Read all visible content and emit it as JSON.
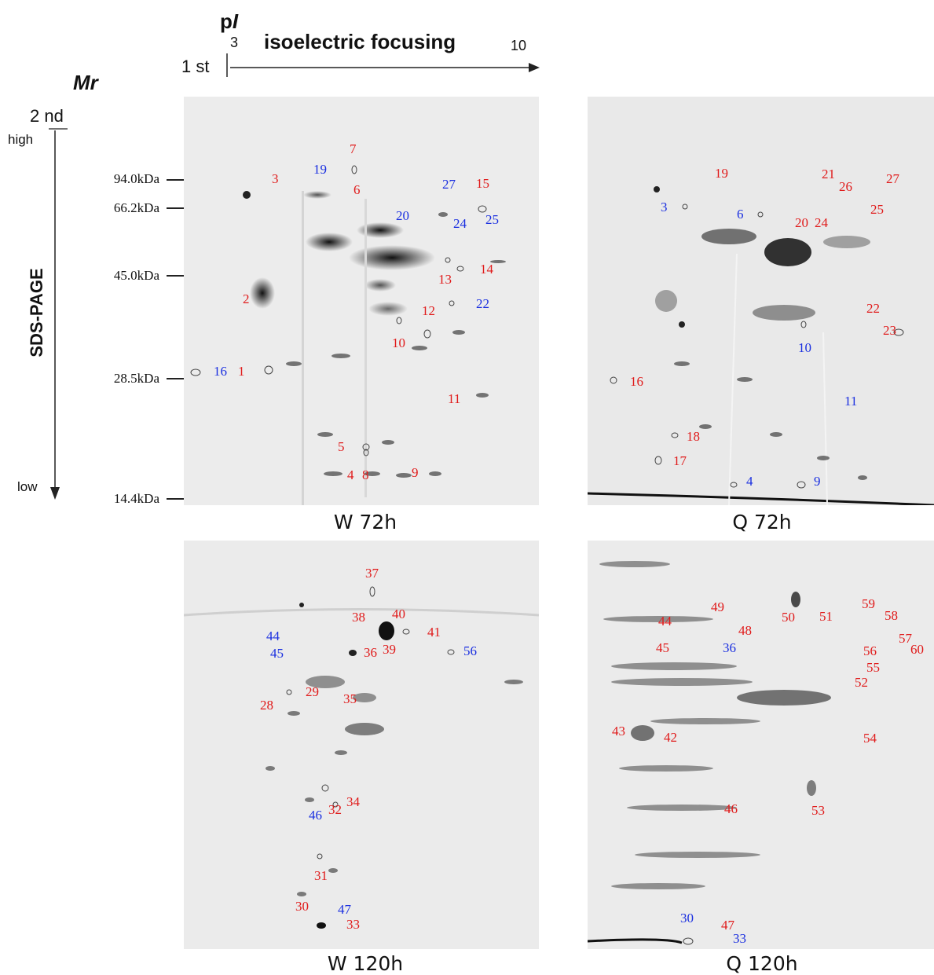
{
  "header": {
    "pi_label": "p",
    "pi_italic": "I",
    "first_dim": "1 st",
    "ph_low": "3",
    "ph_high": "10",
    "focusing_label": "isoelectric focusing",
    "mr_label": "Mr",
    "second_dim": "2 nd",
    "high_label": "high",
    "low_label": "low",
    "sds_label": "SDS-PAGE"
  },
  "markers": [
    "94.0kDa",
    "66.2kDa",
    "45.0kDa",
    "28.5kDa",
    "14.4kDa"
  ],
  "gels": [
    {
      "caption": "W 72h",
      "spots": [
        {
          "n": "1",
          "c": "red"
        },
        {
          "n": "2",
          "c": "red"
        },
        {
          "n": "3",
          "c": "red"
        },
        {
          "n": "4",
          "c": "red"
        },
        {
          "n": "5",
          "c": "red"
        },
        {
          "n": "6",
          "c": "red"
        },
        {
          "n": "7",
          "c": "red"
        },
        {
          "n": "8",
          "c": "red"
        },
        {
          "n": "9",
          "c": "red"
        },
        {
          "n": "10",
          "c": "red"
        },
        {
          "n": "11",
          "c": "red"
        },
        {
          "n": "12",
          "c": "red"
        },
        {
          "n": "13",
          "c": "red"
        },
        {
          "n": "14",
          "c": "red"
        },
        {
          "n": "15",
          "c": "red"
        },
        {
          "n": "16",
          "c": "blue"
        },
        {
          "n": "19",
          "c": "blue"
        },
        {
          "n": "20",
          "c": "blue"
        },
        {
          "n": "22",
          "c": "blue"
        },
        {
          "n": "24",
          "c": "blue"
        },
        {
          "n": "25",
          "c": "blue"
        },
        {
          "n": "27",
          "c": "blue"
        }
      ]
    },
    {
      "caption": "Q 72h",
      "spots": [
        {
          "n": "19",
          "c": "red"
        },
        {
          "n": "3",
          "c": "blue"
        },
        {
          "n": "6",
          "c": "blue"
        },
        {
          "n": "21",
          "c": "red"
        },
        {
          "n": "26",
          "c": "red"
        },
        {
          "n": "27",
          "c": "red"
        },
        {
          "n": "20",
          "c": "red"
        },
        {
          "n": "24",
          "c": "red"
        },
        {
          "n": "25",
          "c": "red"
        },
        {
          "n": "22",
          "c": "red"
        },
        {
          "n": "23",
          "c": "red"
        },
        {
          "n": "10",
          "c": "blue"
        },
        {
          "n": "16",
          "c": "red"
        },
        {
          "n": "11",
          "c": "blue"
        },
        {
          "n": "18",
          "c": "red"
        },
        {
          "n": "17",
          "c": "red"
        },
        {
          "n": "4",
          "c": "blue"
        },
        {
          "n": "9",
          "c": "blue"
        }
      ]
    },
    {
      "caption": "W 120h",
      "spots": [
        {
          "n": "37",
          "c": "red"
        },
        {
          "n": "38",
          "c": "red"
        },
        {
          "n": "40",
          "c": "red"
        },
        {
          "n": "41",
          "c": "red"
        },
        {
          "n": "39",
          "c": "red"
        },
        {
          "n": "44",
          "c": "blue"
        },
        {
          "n": "45",
          "c": "blue"
        },
        {
          "n": "36",
          "c": "red"
        },
        {
          "n": "56",
          "c": "blue"
        },
        {
          "n": "29",
          "c": "red"
        },
        {
          "n": "35",
          "c": "red"
        },
        {
          "n": "28",
          "c": "red"
        },
        {
          "n": "46",
          "c": "blue"
        },
        {
          "n": "32",
          "c": "red"
        },
        {
          "n": "34",
          "c": "red"
        },
        {
          "n": "31",
          "c": "red"
        },
        {
          "n": "30",
          "c": "red"
        },
        {
          "n": "47",
          "c": "blue"
        },
        {
          "n": "33",
          "c": "red"
        }
      ]
    },
    {
      "caption": "Q 120h",
      "spots": [
        {
          "n": "49",
          "c": "red"
        },
        {
          "n": "50",
          "c": "red"
        },
        {
          "n": "51",
          "c": "red"
        },
        {
          "n": "59",
          "c": "red"
        },
        {
          "n": "58",
          "c": "red"
        },
        {
          "n": "44",
          "c": "red"
        },
        {
          "n": "48",
          "c": "red"
        },
        {
          "n": "57",
          "c": "red"
        },
        {
          "n": "45",
          "c": "red"
        },
        {
          "n": "36",
          "c": "blue"
        },
        {
          "n": "56",
          "c": "red"
        },
        {
          "n": "60",
          "c": "red"
        },
        {
          "n": "55",
          "c": "red"
        },
        {
          "n": "52",
          "c": "red"
        },
        {
          "n": "43",
          "c": "red"
        },
        {
          "n": "42",
          "c": "red"
        },
        {
          "n": "54",
          "c": "red"
        },
        {
          "n": "46",
          "c": "red"
        },
        {
          "n": "53",
          "c": "red"
        },
        {
          "n": "30",
          "c": "blue"
        },
        {
          "n": "47",
          "c": "red"
        },
        {
          "n": "33",
          "c": "blue"
        }
      ]
    }
  ]
}
